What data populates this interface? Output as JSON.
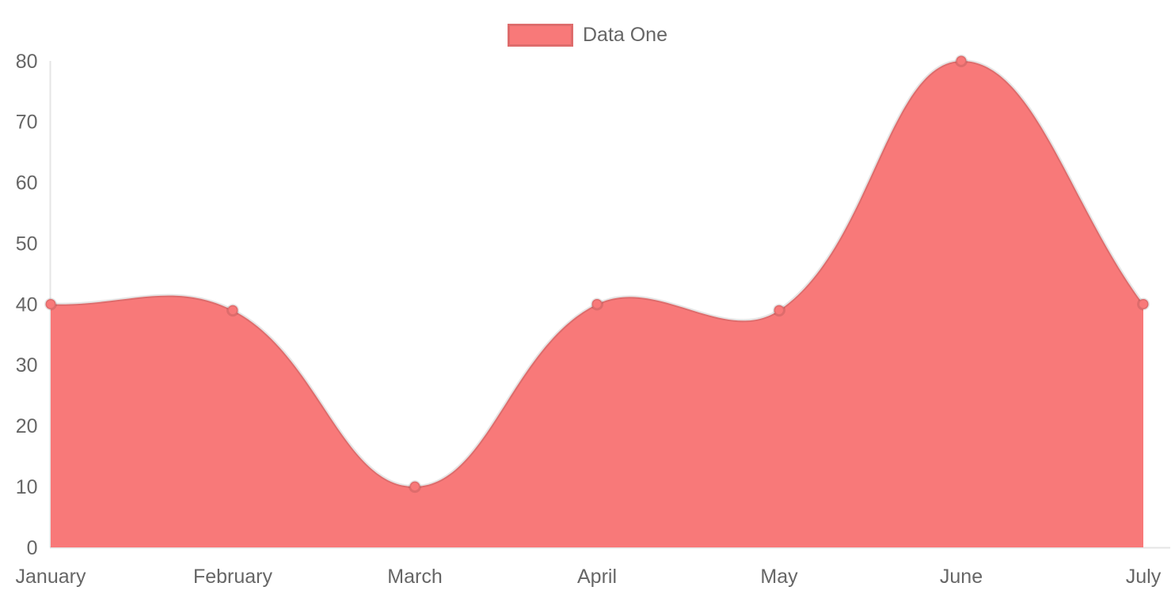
{
  "chart_data": {
    "type": "area",
    "title": "",
    "categories": [
      "January",
      "February",
      "March",
      "April",
      "May",
      "June",
      "July"
    ],
    "series": [
      {
        "name": "Data One",
        "values": [
          40,
          39,
          10,
          40,
          39,
          80,
          40
        ],
        "fill_color": "#f87979",
        "line_color": "rgba(0,0,0,0.1)",
        "point_fill_color": "#f87979",
        "point_border_color": "rgba(0,0,0,0.1)"
      }
    ],
    "xlabel": "",
    "ylabel": "",
    "ylim": [
      0,
      80
    ],
    "y_ticks": [
      0,
      10,
      20,
      30,
      40,
      50,
      60,
      70,
      80
    ],
    "grid": false,
    "legend_position": "top",
    "line_tension": 0.4
  },
  "colors": {
    "axis_line": "rgba(0,0,0,0.1)",
    "tick_text": "#666666",
    "background": "#ffffff"
  }
}
